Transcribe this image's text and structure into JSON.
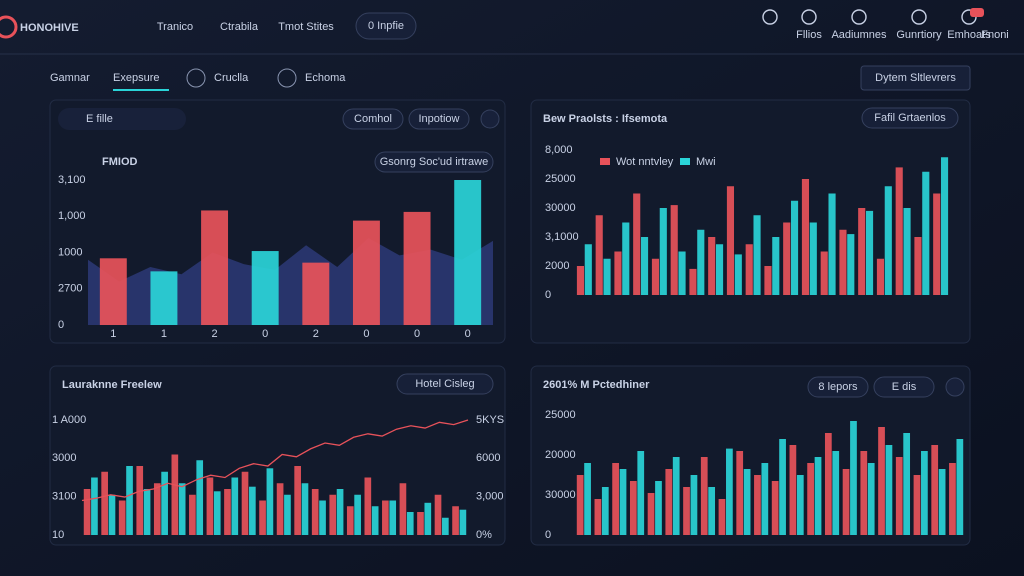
{
  "nav": {
    "logo": "HONOHIVE",
    "links": [
      "Tranico",
      "Ctrabila",
      "Tmot Stites"
    ],
    "button": "0 Inpfie",
    "icons": [
      "Fllios",
      "Aadiumnes",
      "Gunrtiory",
      "Emhoats",
      "Fnoni"
    ]
  },
  "tabs": {
    "items": [
      "Gamnar",
      "Exepsure",
      "Cruclla",
      "Echoma"
    ],
    "button": "Dytem Sltlevrers"
  },
  "panels": [
    {
      "search": "E fille",
      "controls": [
        "Comhol",
        "Inpotiow"
      ],
      "title": "FMIOD",
      "pill": "Gsonrg Soc'ud irtrawe",
      "ylabels": [
        "3,100",
        "1,000",
        "1000",
        "2700",
        "0"
      ],
      "xlabels": [
        "1",
        "1",
        "2",
        "0",
        "2",
        "0",
        "0",
        "0"
      ],
      "ylim": [
        0,
        100
      ],
      "series": [
        {
          "kind": "area",
          "color": "#3a4aa0",
          "values": [
            45,
            30,
            40,
            35,
            50,
            42,
            38,
            55,
            40,
            60,
            48,
            52,
            45,
            58
          ]
        },
        {
          "kind": "bar",
          "colors": [
            "#e8525a",
            "#2ad4d8",
            "#e8525a",
            "#2ad4d8",
            "#e8525a",
            "#e8525a",
            "#e8525a",
            "#2ad4d8"
          ],
          "values": [
            46,
            37,
            79,
            51,
            43,
            72,
            78,
            100
          ]
        }
      ]
    },
    {
      "title": "Bew Praolsts : Ifsemota",
      "pill": "Fafil Grtaenlos",
      "ylabels": [
        "8,000",
        "25000",
        "30000",
        "3,1000",
        "2000",
        "0"
      ],
      "ylim": [
        0,
        100
      ],
      "series": [
        {
          "name": "Wot nntvley",
          "kind": "bar",
          "color": "#e8525a",
          "values": [
            20,
            55,
            30,
            70,
            25,
            62,
            18,
            40,
            75,
            35,
            20,
            50,
            80,
            30,
            45,
            60,
            25,
            88,
            40,
            70
          ]
        },
        {
          "name": "Mwi",
          "kind": "bar",
          "color": "#2ad4d8",
          "values": [
            35,
            25,
            50,
            40,
            60,
            30,
            45,
            35,
            28,
            55,
            40,
            65,
            50,
            70,
            42,
            58,
            75,
            60,
            85,
            95
          ]
        }
      ]
    },
    {
      "title": "Lauraknne Freelew",
      "pill": "Hotel Cisleg",
      "ylabels": [
        "1 A000",
        "3000",
        "3100",
        "10"
      ],
      "y2labels": [
        "5KYS",
        "6000",
        "3,000",
        "0%"
      ],
      "ylim": [
        0,
        100
      ],
      "series": [
        {
          "kind": "bar",
          "color": "#e8525a",
          "values": [
            40,
            55,
            30,
            60,
            45,
            70,
            35,
            50,
            40,
            55,
            30,
            45,
            60,
            40,
            35,
            25,
            50,
            30,
            45,
            20,
            35,
            25
          ]
        },
        {
          "kind": "bar",
          "color": "#2ad4d8",
          "values": [
            50,
            35,
            60,
            40,
            55,
            45,
            65,
            38,
            50,
            42,
            58,
            35,
            45,
            30,
            40,
            35,
            25,
            30,
            20,
            28,
            15,
            22
          ]
        },
        {
          "kind": "line",
          "color": "#e8525a",
          "values": [
            30,
            32,
            35,
            33,
            38,
            40,
            45,
            42,
            48,
            52,
            50,
            58,
            62,
            60,
            70,
            68,
            75,
            80,
            78,
            85,
            88,
            86,
            92,
            95,
            93,
            98,
            96,
            100
          ]
        }
      ]
    },
    {
      "title": "2601% M Pctedhiner",
      "controls": [
        "8 lepors",
        "E dis"
      ],
      "ylabels": [
        "25000",
        "20000",
        "30000",
        "0"
      ],
      "ylim": [
        0,
        100
      ],
      "series": [
        {
          "kind": "bar",
          "color": "#e8525a",
          "values": [
            50,
            30,
            60,
            45,
            35,
            55,
            40,
            65,
            30,
            70,
            50,
            45,
            75,
            60,
            85,
            55,
            70,
            90,
            65,
            50,
            75,
            60
          ]
        },
        {
          "kind": "bar",
          "color": "#2ad4d8",
          "values": [
            60,
            40,
            55,
            70,
            45,
            65,
            50,
            40,
            72,
            55,
            60,
            80,
            50,
            65,
            70,
            95,
            60,
            75,
            85,
            70,
            55,
            80
          ]
        }
      ]
    }
  ]
}
